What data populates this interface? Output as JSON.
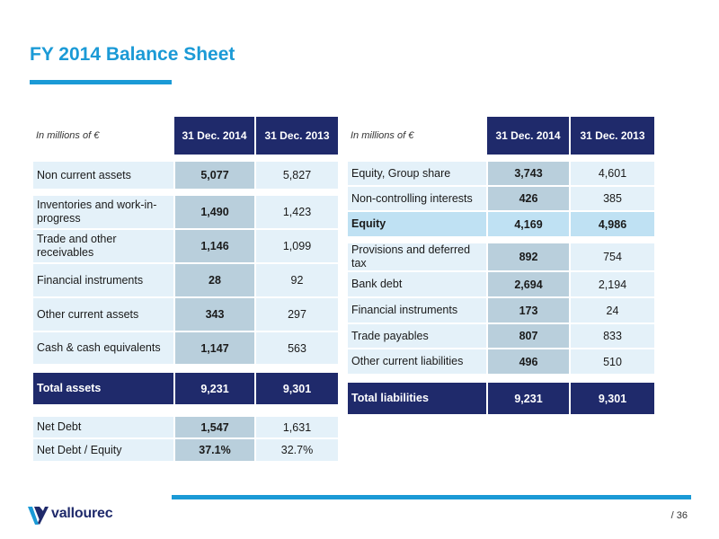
{
  "title": "FY 2014 Balance Sheet",
  "assets": {
    "unit": "In millions of €",
    "col1": "31 Dec. 2014",
    "col2": "31 Dec. 2013",
    "rows": [
      {
        "label": "Non current assets",
        "v2014": "5,077",
        "v2013": "5,827"
      },
      {
        "label": "Inventories and work-in-progress",
        "v2014": "1,490",
        "v2013": "1,423"
      },
      {
        "label": "Trade and other receivables",
        "v2014": "1,146",
        "v2013": "1,099"
      },
      {
        "label": "Financial instruments",
        "v2014": "28",
        "v2013": "92"
      },
      {
        "label": "Other current assets",
        "v2014": "343",
        "v2013": "297"
      },
      {
        "label": "Cash & cash equivalents",
        "v2014": "1,147",
        "v2013": "563"
      }
    ],
    "total": {
      "label": "Total assets",
      "v2014": "9,231",
      "v2013": "9,301"
    },
    "debt": [
      {
        "label": "Net Debt",
        "v2014": "1,547",
        "v2013": "1,631"
      },
      {
        "label": "Net Debt / Equity",
        "v2014": "37.1%",
        "v2013": "32.7%"
      }
    ]
  },
  "liabilities": {
    "unit": "In millions of €",
    "col1": "31 Dec. 2014",
    "col2": "31 Dec. 2013",
    "equity_rows": [
      {
        "label": "Equity, Group share",
        "v2014": "3,743",
        "v2013": "4,601"
      },
      {
        "label": "Non-controlling interests",
        "v2014": "426",
        "v2013": "385"
      }
    ],
    "equity": {
      "label": "Equity",
      "v2014": "4,169",
      "v2013": "4,986"
    },
    "rows": [
      {
        "label": "Provisions and deferred tax",
        "v2014": "892",
        "v2013": "754"
      },
      {
        "label": "Bank debt",
        "v2014": "2,694",
        "v2013": "2,194"
      },
      {
        "label": "Financial instruments",
        "v2014": "173",
        "v2013": "24"
      },
      {
        "label": "Trade payables",
        "v2014": "807",
        "v2013": "833"
      },
      {
        "label": "Other current liabilities",
        "v2014": "496",
        "v2013": "510"
      }
    ],
    "total": {
      "label": "Total liabilities",
      "v2014": "9,231",
      "v2013": "9,301"
    }
  },
  "logo": {
    "text": "vallourec",
    "icon": "vallourec-v-logo-icon"
  },
  "page_number": "/ 36",
  "colors": {
    "accent": "#1b9ad6",
    "navy": "#1f2a6b",
    "light": "#e4f1f9",
    "mid": "#b9cfdc",
    "equity": "#bfe1f3"
  }
}
